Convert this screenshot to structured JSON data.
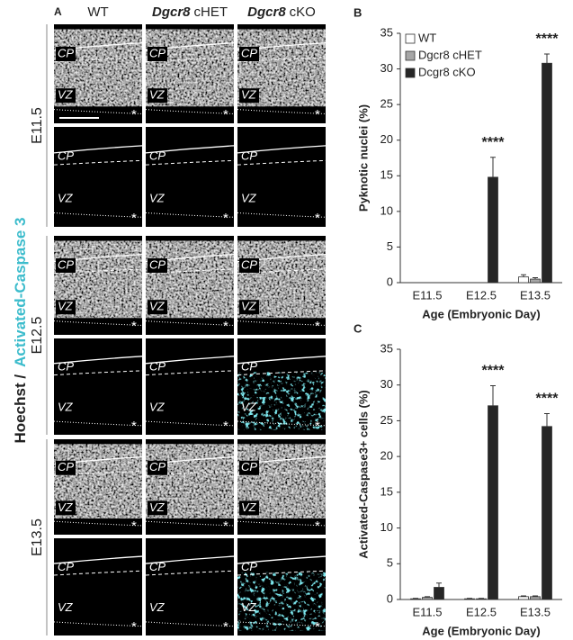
{
  "panel_a": {
    "label": "A",
    "stain": {
      "hoechst": "Hoechst /",
      "caspase": "Activated-Caspase 3"
    },
    "columns": [
      "WT",
      {
        "gene": "Dgcr8",
        "genotype": "cHET"
      },
      {
        "gene": "Dgcr8",
        "genotype": "cKO"
      }
    ],
    "ages": [
      "E11.5",
      "E12.5",
      "E13.5"
    ],
    "layer_labels": {
      "cp": "CP",
      "vz": "VZ",
      "marker": "*"
    }
  },
  "chart_data": [
    {
      "type": "bar",
      "panel": "B",
      "y_label": "Pyknotic nuclei (%)",
      "x_label": "Age (Embryonic Day)",
      "categories": [
        "E11.5",
        "E12.5",
        "E13.5"
      ],
      "ylim": [
        0,
        35
      ],
      "yticks": [
        0,
        5,
        10,
        15,
        20,
        25,
        30,
        35
      ],
      "legend": "top-left",
      "series": [
        {
          "name": "WT",
          "color": "#ffffff",
          "values": [
            0,
            0,
            0.8
          ],
          "errors": [
            0,
            0,
            0.3
          ]
        },
        {
          "name": "Dgcr8 cHET",
          "color": "#a6a6a6",
          "values": [
            0,
            0,
            0.5
          ],
          "errors": [
            0,
            0,
            0.2
          ]
        },
        {
          "name": "Dcgr8 cKO",
          "color": "#262626",
          "values": [
            0,
            14.8,
            30.8
          ],
          "errors": [
            0,
            2.8,
            1.3
          ]
        }
      ],
      "annotations": [
        {
          "text": "****",
          "x": "E12.5"
        },
        {
          "text": "****",
          "x": "E13.5"
        }
      ]
    },
    {
      "type": "bar",
      "panel": "C",
      "y_label": "Activated-Caspase3+ cells (%)",
      "x_label": "Age (Embryonic Day)",
      "categories": [
        "E11.5",
        "E12.5",
        "E13.5"
      ],
      "ylim": [
        0,
        35
      ],
      "yticks": [
        0,
        5,
        10,
        15,
        20,
        25,
        30,
        35
      ],
      "series": [
        {
          "color": "#ffffff",
          "values": [
            0.1,
            0.1,
            0.4
          ],
          "errors": [
            0.05,
            0.05,
            0.1
          ]
        },
        {
          "color": "#a6a6a6",
          "values": [
            0.3,
            0.1,
            0.4
          ],
          "errors": [
            0.1,
            0.05,
            0.1
          ]
        },
        {
          "color": "#262626",
          "values": [
            1.7,
            27.1,
            24.2
          ],
          "errors": [
            0.6,
            2.8,
            1.8
          ]
        }
      ],
      "annotations": [
        {
          "text": "****",
          "x": "E12.5"
        },
        {
          "text": "****",
          "x": "E13.5"
        }
      ]
    }
  ]
}
